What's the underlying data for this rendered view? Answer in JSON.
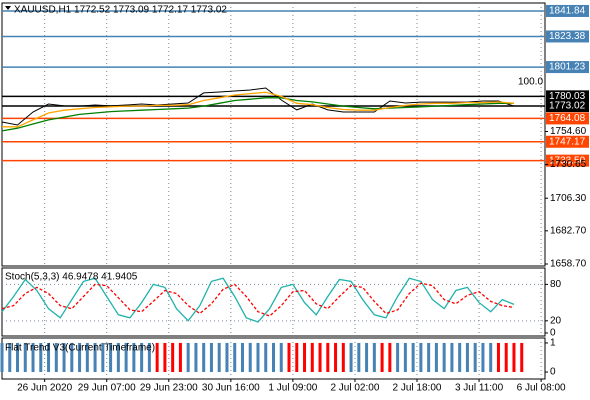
{
  "chart_data": [
    {
      "type": "line",
      "title": "XAUUSD,H1  1772.52 1773.09 1772.17 1773.02",
      "annotation": "100.0",
      "xlim": [
        0,
        140
      ],
      "ylim": [
        1657.25,
        1847.6
      ],
      "x": [
        0,
        4,
        8,
        12,
        16,
        20,
        24,
        28,
        32,
        36,
        40,
        44,
        48,
        52,
        56,
        60,
        64,
        68,
        72,
        76,
        80,
        84,
        88,
        92,
        96,
        100,
        104,
        108,
        112,
        116,
        120,
        124,
        128,
        132
      ],
      "series": [
        {
          "color": "#000000",
          "values": [
            1761.5,
            1759.3,
            1768.7,
            1774.5,
            1773.1,
            1773.0,
            1773.8,
            1773.1,
            1773.8,
            1774.5,
            1773.8,
            1774.5,
            1775.2,
            1782.5,
            1783.2,
            1783.9,
            1784.6,
            1786.1,
            1777.4,
            1770.2,
            1774.5,
            1770.2,
            1768.7,
            1768.7,
            1768.7,
            1776.7,
            1775.2,
            1775.9,
            1775.9,
            1775.9,
            1775.9,
            1776.7,
            1776.7,
            1773.0
          ]
        },
        {
          "color": "#008000",
          "values": [
            1755,
            1757,
            1760,
            1763,
            1765,
            1767,
            1768,
            1769,
            1769.5,
            1770,
            1770.5,
            1771,
            1771.5,
            1773,
            1775,
            1777,
            1778,
            1779,
            1779,
            1777,
            1776,
            1774.5,
            1773,
            1772,
            1771,
            1771.5,
            1772,
            1772.5,
            1773,
            1773.5,
            1774,
            1774.5,
            1775,
            1775
          ]
        },
        {
          "color": "#ffa500",
          "values": [
            1758,
            1758,
            1763,
            1768,
            1770,
            1771,
            1772,
            1772.5,
            1773,
            1773,
            1773.5,
            1773.5,
            1774,
            1777,
            1779,
            1781,
            1782,
            1783,
            1780,
            1775,
            1774,
            1772,
            1770.5,
            1770,
            1770,
            1772,
            1773.5,
            1774.5,
            1775,
            1775,
            1775.5,
            1775.5,
            1776,
            1775
          ]
        }
      ],
      "yticks": [
        {
          "value": 1754.6,
          "label": "1754.60"
        },
        1730.65,
        {
          "value": 1706.3,
          "label": "1706.30"
        },
        {
          "value": 1682.7,
          "label": "1682.70"
        },
        {
          "value": 1658.7,
          "label": "1658.70"
        }
      ],
      "levels": [
        {
          "value": 1841.84,
          "color": "#4682b4"
        },
        {
          "value": 1823.38,
          "color": "#4682b4"
        },
        {
          "value": 1801.23,
          "color": "#4682b4"
        },
        {
          "value": 1780.03,
          "color": "#000000"
        },
        {
          "value": 1773.02,
          "color": "#000000"
        },
        {
          "value": 1764.08,
          "color": "#ff4500"
        },
        {
          "value": 1747.17,
          "color": "#ff4500"
        },
        {
          "value": 1733.5,
          "label": "1733.50",
          "color": "#ff4500"
        }
      ]
    },
    {
      "type": "line",
      "title": "Stoch(5,3,3) 46.9478 41.9405",
      "xlim": [
        0,
        140
      ],
      "ylim": [
        -5,
        107
      ],
      "x": [
        0,
        3,
        6,
        9,
        12,
        15,
        18,
        21,
        24,
        27,
        30,
        33,
        36,
        39,
        42,
        45,
        48,
        51,
        54,
        57,
        60,
        63,
        66,
        69,
        72,
        75,
        78,
        81,
        84,
        87,
        90,
        93,
        96,
        99,
        102,
        105,
        108,
        111,
        114,
        117,
        120,
        123,
        126,
        129,
        132
      ],
      "series": [
        {
          "color": "#20b2aa",
          "values": [
            35,
            60,
            88,
            70,
            40,
            25,
            55,
            85,
            90,
            60,
            30,
            25,
            50,
            80,
            75,
            40,
            20,
            45,
            85,
            90,
            60,
            25,
            18,
            40,
            75,
            80,
            50,
            30,
            60,
            88,
            85,
            55,
            30,
            25,
            60,
            90,
            85,
            55,
            40,
            70,
            75,
            50,
            35,
            55,
            47
          ]
        },
        {
          "color": "#ff0000",
          "dashed": true,
          "values": [
            40,
            45,
            65,
            75,
            65,
            45,
            40,
            60,
            80,
            78,
            58,
            38,
            35,
            52,
            70,
            65,
            45,
            32,
            48,
            72,
            80,
            60,
            35,
            28,
            45,
            68,
            70,
            48,
            40,
            60,
            78,
            75,
            52,
            32,
            38,
            65,
            82,
            78,
            55,
            48,
            62,
            68,
            52,
            45,
            42
          ]
        }
      ],
      "yticks": [
        0,
        20,
        80
      ],
      "levels": [
        20,
        80
      ]
    },
    {
      "type": "bar",
      "title": "Flat Trend V3(Current Timeframe)",
      "xlim": [
        0,
        140
      ],
      "ylim": [
        -0.24,
        1.17
      ],
      "yticks": [
        0,
        1
      ],
      "x": [
        0,
        2,
        4,
        6,
        8,
        10,
        12,
        14,
        16,
        18,
        20,
        22,
        24,
        26,
        28,
        30,
        32,
        34,
        36,
        38,
        40,
        42,
        44,
        46,
        48,
        50,
        52,
        54,
        56,
        58,
        60,
        62,
        64,
        66,
        68,
        70,
        72,
        74,
        76,
        78,
        80,
        82,
        84,
        86,
        88,
        90,
        92,
        94,
        96,
        98,
        100,
        102,
        104,
        106,
        108,
        110,
        112,
        114,
        116,
        118,
        120,
        122,
        124,
        126,
        128,
        130,
        132,
        134
      ],
      "values": [
        1,
        1,
        1,
        1,
        1,
        1,
        1,
        1,
        1,
        1,
        1,
        1,
        1,
        1,
        1,
        1,
        1,
        1,
        1,
        1,
        1,
        1,
        1,
        1,
        1,
        1,
        1,
        1,
        1,
        1,
        1,
        1,
        1,
        1,
        1,
        1,
        1,
        1,
        1,
        1,
        1,
        1,
        1,
        1,
        1,
        1,
        1,
        1,
        1,
        1,
        1,
        1,
        1,
        1,
        1,
        1,
        1,
        1,
        1,
        1,
        1,
        1,
        1,
        1,
        1,
        1,
        1,
        1
      ],
      "colors": [
        "#4682b4",
        "#4682b4",
        "#4682b4",
        "#4682b4",
        "#4682b4",
        "#4682b4",
        "#4682b4",
        "#4682b4",
        "#4682b4",
        "#4682b4",
        "#4682b4",
        "#4682b4",
        "#4682b4",
        "#4682b4",
        "#4682b4",
        "#4682b4",
        "#4682b4",
        "#4682b4",
        "#4682b4",
        "#4682b4",
        "#ff0000",
        "#ff0000",
        "#ff0000",
        "#ff0000",
        "#4682b4",
        "#4682b4",
        "#4682b4",
        "#4682b4",
        "#4682b4",
        "#4682b4",
        "#4682b4",
        "#4682b4",
        "#4682b4",
        "#4682b4",
        "#4682b4",
        "#4682b4",
        "#4682b4",
        "#ff0000",
        "#ff0000",
        "#ff0000",
        "#ff0000",
        "#ff0000",
        "#ff0000",
        "#ff0000",
        "#ff0000",
        "#4682b4",
        "#4682b4",
        "#4682b4",
        "#4682b4",
        "#ff0000",
        "#ff0000",
        "#4682b4",
        "#4682b4",
        "#4682b4",
        "#4682b4",
        "#4682b4",
        "#4682b4",
        "#4682b4",
        "#4682b4",
        "#4682b4",
        "#4682b4",
        "#4682b4",
        "#4682b4",
        "#4682b4",
        "#ff0000",
        "#ff0000",
        "#ff0000",
        "#ff0000"
      ],
      "xticks": [
        {
          "value": 11,
          "label": "26 Jun 2020"
        },
        {
          "value": 27,
          "label": "29 Jun 07:00"
        },
        {
          "value": 43,
          "label": "29 Jun 23:00"
        },
        {
          "value": 59,
          "label": "30 Jun 16:00"
        },
        {
          "value": 75,
          "label": "1 Jul 09:00"
        },
        {
          "value": 91,
          "label": "2 Jul 02:00"
        },
        {
          "value": 107,
          "label": "2 Jul 18:00"
        },
        {
          "value": 123,
          "label": "3 Jul 11:00"
        },
        {
          "value": 139,
          "label": "6 Jul 08:00"
        }
      ]
    }
  ]
}
